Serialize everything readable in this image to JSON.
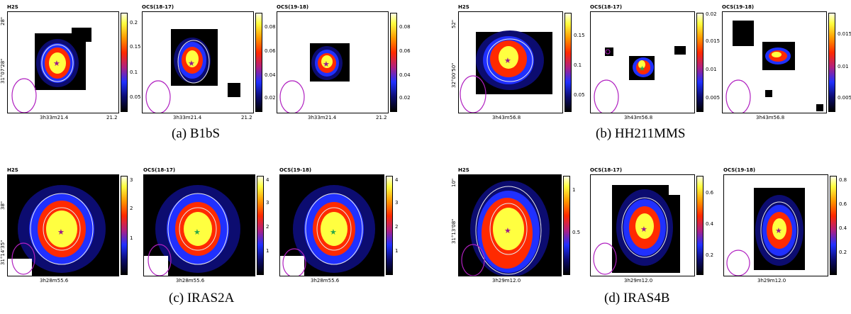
{
  "colormap_colors": [
    "#000000",
    "#0c0c70",
    "#2030ff",
    "#b02080",
    "#ff2a00",
    "#ff9a00",
    "#ffff40",
    "#ffffe6"
  ],
  "marker_colors": {
    "source_star": "#9a1a8a",
    "peak_star": "#2aa84a",
    "beam": "#b020c0",
    "contour": "#e8e8e8"
  },
  "groups": [
    {
      "caption": "(a) B1bS",
      "dec_label": "31°07'28\"",
      "dec_top_label": "28\"",
      "panels": [
        {
          "title": "H2S",
          "ra_labels": [
            "3h33m21.4",
            "21.2"
          ],
          "cbar_ticks": [
            "0.2",
            "0.15",
            "0.1",
            "0.05"
          ]
        },
        {
          "title": "OCS(18-17)",
          "ra_labels": [
            "3h33m21.4",
            "21.2"
          ],
          "cbar_ticks": [
            "0.08",
            "0.06",
            "0.04",
            "0.02"
          ]
        },
        {
          "title": "OCS(19-18)",
          "ra_labels": [
            "3h33m21.4",
            "21.2"
          ],
          "cbar_ticks": [
            "0.08",
            "0.06",
            "0.04",
            "0.02"
          ]
        }
      ]
    },
    {
      "caption": "(b) HH211MMS",
      "dec_label": "32°00'50\"",
      "dec_top_label": "52\"",
      "panels": [
        {
          "title": "H2S",
          "ra_labels": [
            "3h43m56.8"
          ],
          "cbar_ticks": [
            "0.15",
            "0.1",
            "0.05"
          ]
        },
        {
          "title": "OCS(18-17)",
          "ra_labels": [
            "3h43m56.8"
          ],
          "cbar_ticks": [
            "0.02",
            "0.015",
            "0.01",
            "0.005"
          ]
        },
        {
          "title": "OCS(19-18)",
          "ra_labels": [
            "3h43m56.8"
          ],
          "cbar_ticks": [
            "0.015",
            "0.01",
            "0.005"
          ]
        }
      ]
    },
    {
      "caption": "(c) IRAS2A",
      "dec_label": "31°14'35\"",
      "dec_top_label": "38\"",
      "panels": [
        {
          "title": "H2S",
          "ra_labels": [
            "3h28m55.6"
          ],
          "cbar_ticks": [
            "3",
            "2",
            "1"
          ]
        },
        {
          "title": "OCS(18-17)",
          "ra_labels": [
            "3h28m55.6"
          ],
          "cbar_ticks": [
            "4",
            "3",
            "2",
            "1"
          ]
        },
        {
          "title": "OCS(19-18)",
          "ra_labels": [
            "3h28m55.6"
          ],
          "cbar_ticks": [
            "4",
            "3",
            "2",
            "1"
          ]
        }
      ]
    },
    {
      "caption": "(d) IRAS4B",
      "dec_label": "31°13'08\"",
      "dec_top_label": "10\"",
      "panels": [
        {
          "title": "H2S",
          "ra_labels": [
            "3h29m12.0"
          ],
          "cbar_ticks": [
            "1",
            "0.5"
          ]
        },
        {
          "title": "OCS(18-17)",
          "ra_labels": [
            "3h29m12.0"
          ],
          "cbar_ticks": [
            "0.6",
            "0.4",
            "0.2"
          ]
        },
        {
          "title": "OCS(19-18)",
          "ra_labels": [
            "3h29m12.0"
          ],
          "cbar_ticks": [
            "0.8",
            "0.6",
            "0.4",
            "0.2"
          ]
        }
      ]
    }
  ]
}
